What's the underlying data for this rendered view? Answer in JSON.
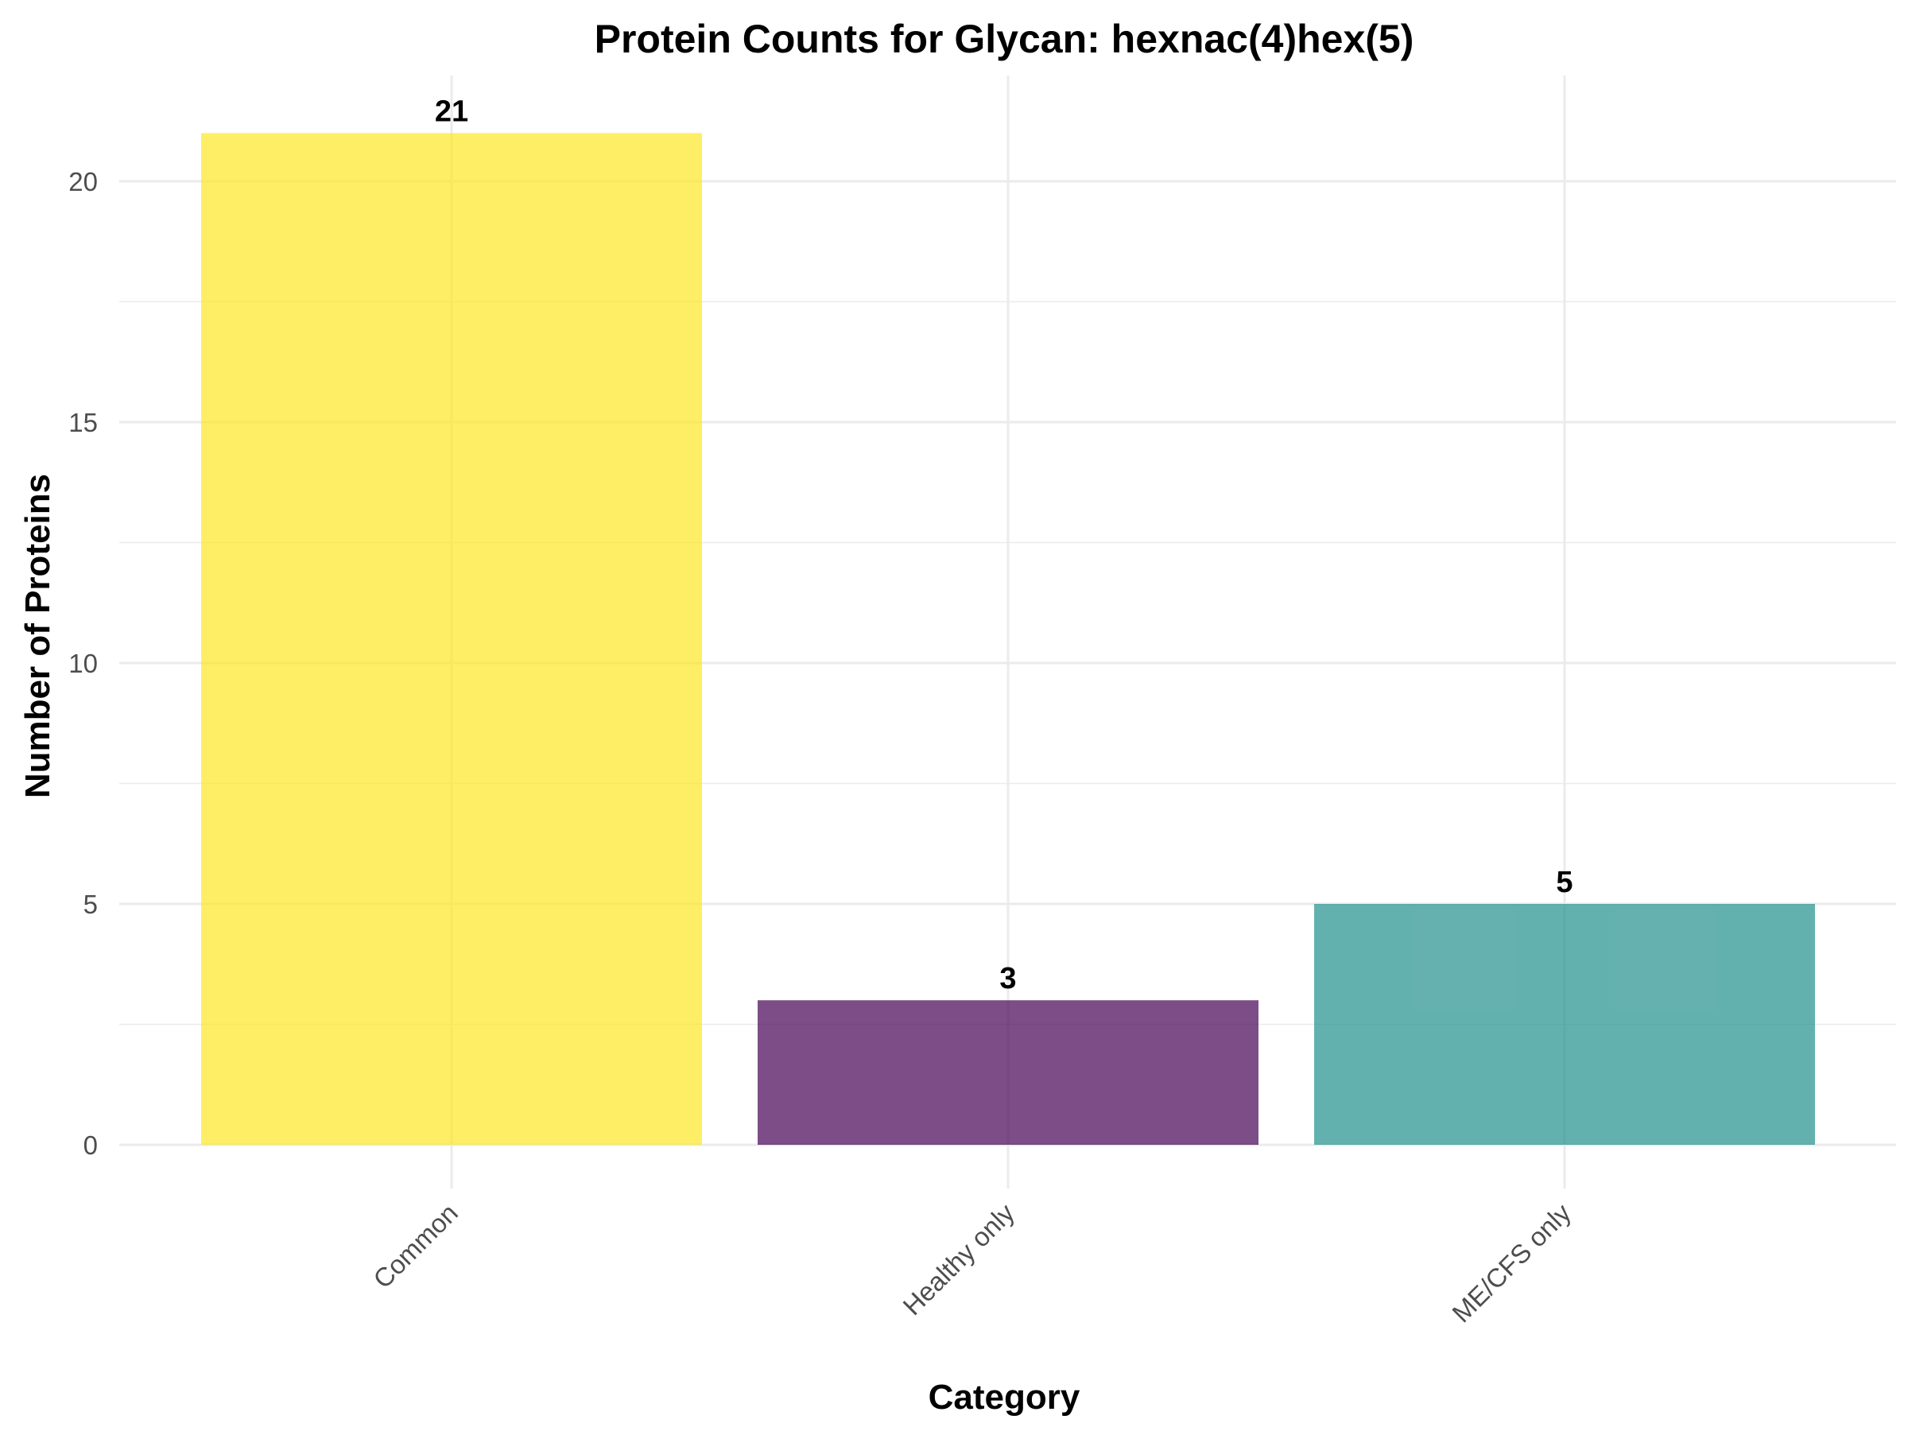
{
  "chart_data": {
    "type": "bar",
    "title": "Protein Counts for Glycan: hexnac(4)hex(5)",
    "xlabel": "Category",
    "ylabel": "Number of Proteins",
    "categories": [
      "Common",
      "Healthy only",
      "ME/CFS only"
    ],
    "values": [
      21,
      3,
      5
    ],
    "data_labels": [
      "21",
      "3",
      "5"
    ],
    "colors": [
      "#FDE725",
      "#440154",
      "#21908C"
    ],
    "bar_opacity": 0.7,
    "ylim": [
      0,
      22
    ],
    "yticks": [
      0,
      5,
      10,
      15,
      20
    ],
    "ytick_labels": [
      "0",
      "5",
      "10",
      "15",
      "20"
    ],
    "grid": true,
    "legend": "none",
    "x_tick_rotation": 45
  }
}
